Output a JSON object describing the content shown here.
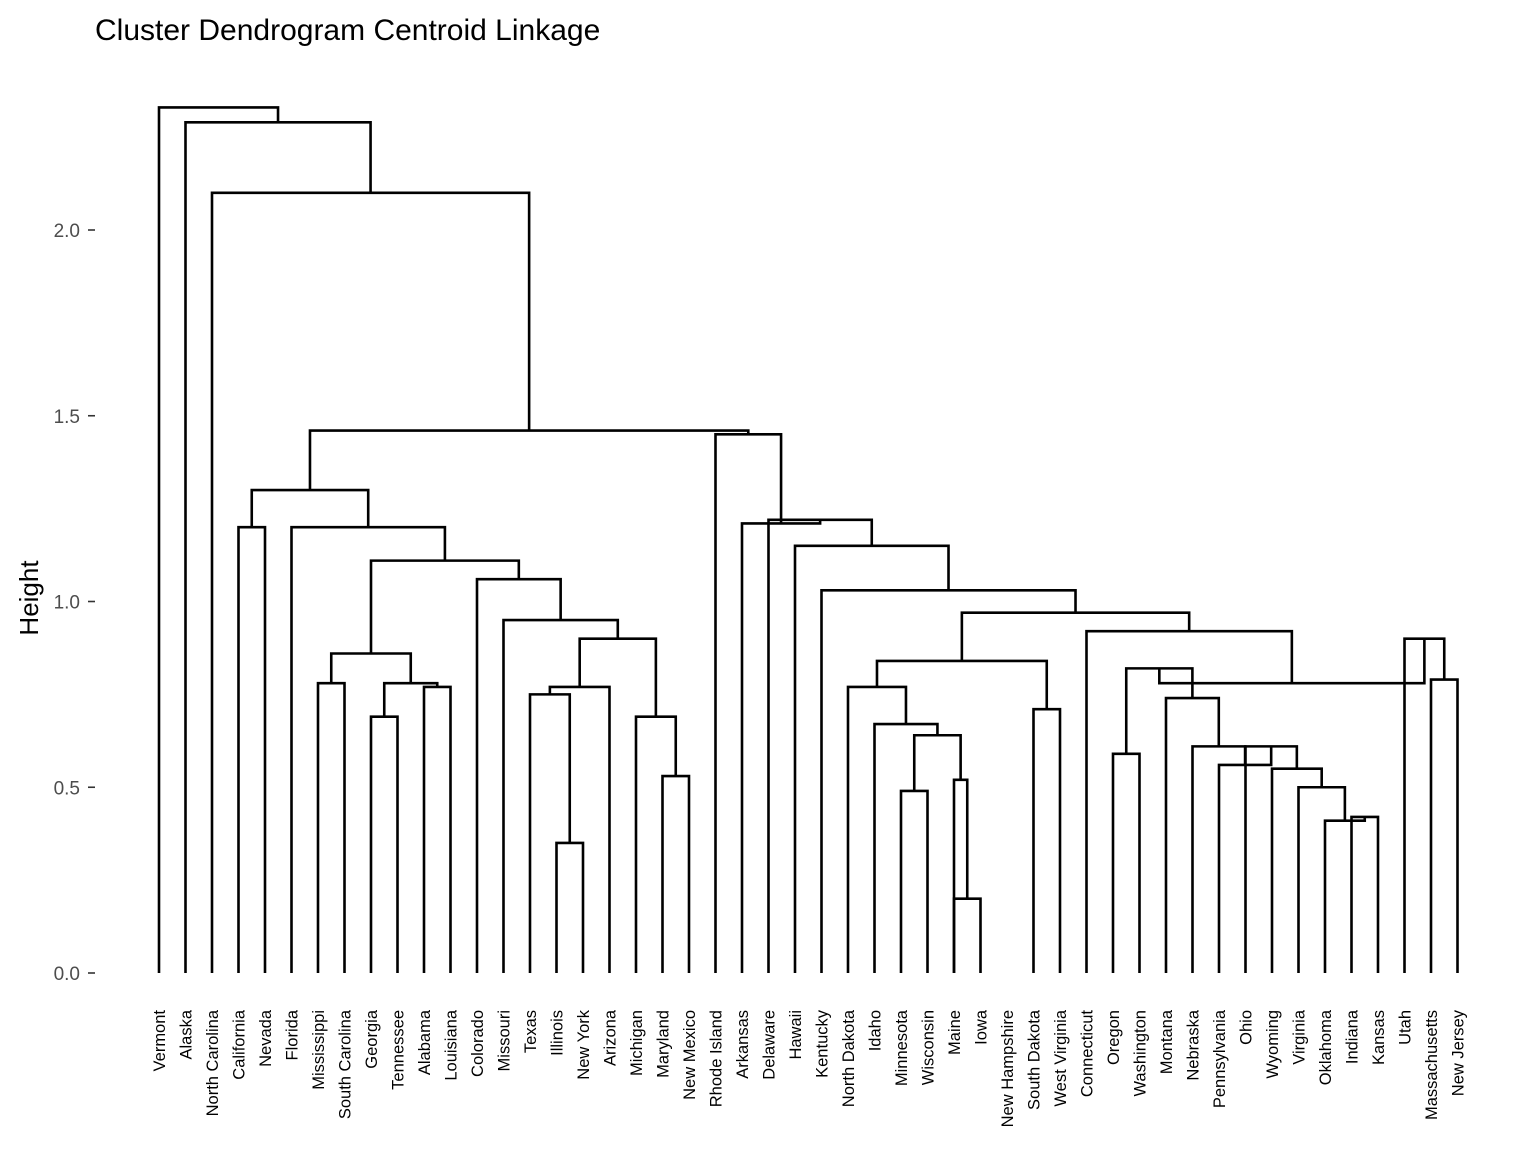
{
  "chart_data": {
    "type": "dendrogram",
    "title": "Cluster Dendrogram Centroid Linkage",
    "ylabel": "Height",
    "ylim": [
      0,
      2.35
    ],
    "yticks": [
      0.0,
      0.5,
      1.0,
      1.5,
      2.0
    ],
    "ytick_labels": [
      "0.0",
      "0.5",
      "1.0",
      "1.5",
      "2.0"
    ],
    "grid": false,
    "leaves": [
      "Vermont",
      "Alaska",
      "North Carolina",
      "California",
      "Nevada",
      "Florida",
      "Mississippi",
      "South Carolina",
      "Georgia",
      "Tennessee",
      "Alabama",
      "Louisiana",
      "Colorado",
      "Missouri",
      "Texas",
      "Illinois",
      "New York",
      "Arizona",
      "Michigan",
      "Maryland",
      "New Mexico",
      "Rhode Island",
      "Arkansas",
      "Delaware",
      "Hawaii",
      "Kentucky",
      "North Dakota",
      "Idaho",
      "Minnesota",
      "Wisconsin",
      "Maine",
      "Iowa",
      "New Hampshire",
      "South Dakota",
      "West Virginia",
      "Connecticut",
      "Oregon",
      "Washington",
      "Montana",
      "Nebraska",
      "Pennsylvania",
      "Ohio",
      "Wyoming",
      "Virginia",
      "Oklahoma",
      "Indiana",
      "Kansas",
      "Utah",
      "Massachusetts",
      "New Jersey"
    ],
    "merges": [
      {
        "left": "Maine",
        "right": "Iowa",
        "height": 0.2
      },
      {
        "left": "Illinois",
        "right": "New York",
        "height": 0.35
      },
      {
        "left": "Indiana",
        "right": "Kansas",
        "height": 0.42
      },
      {
        "left": "Oklahoma",
        "right": 3,
        "height": 0.41
      },
      {
        "left": "Minnesota",
        "right": "Wisconsin",
        "height": 0.49
      },
      {
        "left": "Virginia",
        "right": 4,
        "height": 0.5
      },
      {
        "left": "Maryland",
        "right": "New Mexico",
        "height": 0.53
      },
      {
        "left": "Wyoming",
        "right": 6,
        "height": 0.55
      },
      {
        "left": "Ohio",
        "right": 8,
        "height": 0.61
      },
      {
        "left": "Pennsylvania",
        "right": 9,
        "height": 0.56
      },
      {
        "left": "Maine",
        "right": 1,
        "height": 0.52
      },
      {
        "left": 5,
        "right": 11,
        "height": 0.64
      },
      {
        "left": "Oregon",
        "right": "Washington",
        "height": 0.59
      },
      {
        "left": "Idaho",
        "right": 12,
        "height": 0.67
      },
      {
        "left": "Michigan",
        "right": 7,
        "height": 0.69
      },
      {
        "left": "Georgia",
        "right": "Tennessee",
        "height": 0.69
      },
      {
        "left": "South Dakota",
        "right": "West Virginia",
        "height": 0.71
      },
      {
        "left": "Nebraska",
        "right": 10,
        "height": 0.61
      },
      {
        "left": "Montana",
        "right": 18,
        "height": 0.74
      },
      {
        "left": "Texas",
        "right": 2,
        "height": 0.75
      },
      {
        "left": "Alabama",
        "right": "Louisiana",
        "height": 0.77
      },
      {
        "left": "North Dakota",
        "right": 14,
        "height": 0.77
      },
      {
        "left": 16,
        "right": 21,
        "height": 0.78
      },
      {
        "left": "Mississippi",
        "right": "South Carolina",
        "height": 0.78
      },
      {
        "left": 20,
        "right": "Arizona",
        "height": 0.77
      },
      {
        "left": 13,
        "right": 19,
        "height": 0.82
      },
      {
        "left": "Massachusetts",
        "right": "New Jersey",
        "height": 0.79
      },
      {
        "left": 22,
        "right": 17,
        "height": 0.84
      },
      {
        "left": 24,
        "right": 23,
        "height": 0.86
      },
      {
        "left": 25,
        "right": 15,
        "height": 0.9
      },
      {
        "left": "Utah",
        "right": 27,
        "height": 0.9
      },
      {
        "left": 26,
        "right": 31,
        "height": 0.78
      },
      {
        "left": "Connecticut",
        "right": 32,
        "height": 0.92
      },
      {
        "left": "Missouri",
        "right": 30,
        "height": 0.95
      },
      {
        "left": 28,
        "right": 33,
        "height": 0.97
      },
      {
        "left": "Kentucky",
        "right": 35,
        "height": 1.03
      },
      {
        "left": "Colorado",
        "right": 34,
        "height": 1.06
      },
      {
        "left": 29,
        "right": 37,
        "height": 1.11
      },
      {
        "left": "Hawaii",
        "right": 36,
        "height": 1.15
      },
      {
        "left": "California",
        "right": "Nevada",
        "height": 1.2
      },
      {
        "left": "Florida",
        "right": 38,
        "height": 1.2
      },
      {
        "left": "Delaware",
        "right": 39,
        "height": 1.22
      },
      {
        "left": "Arkansas",
        "right": 42,
        "height": 1.21
      },
      {
        "left": 40,
        "right": 41,
        "height": 1.3
      },
      {
        "left": "Rhode Island",
        "right": 43,
        "height": 1.45
      },
      {
        "left": 44,
        "right": 45,
        "height": 1.46
      },
      {
        "left": "North Carolina",
        "right": 46,
        "height": 2.1
      },
      {
        "left": "Alaska",
        "right": 47,
        "height": 2.29
      },
      {
        "left": "Vermont",
        "right": 48,
        "height": 2.33
      }
    ]
  }
}
